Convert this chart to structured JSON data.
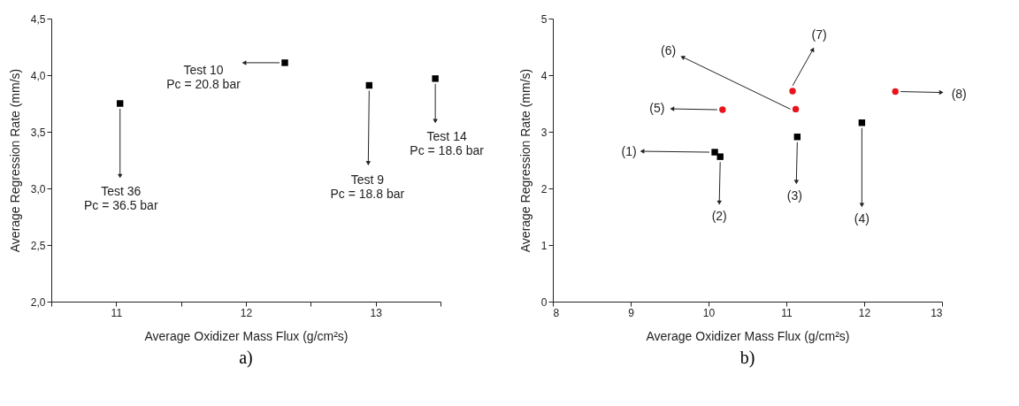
{
  "chart_data": [
    {
      "type": "scatter",
      "xlabel": "Average Oxidizer Mass Flux (g/cm²s)",
      "ylabel": "Average Regression Rate (mm/s)",
      "xlim": [
        10.5,
        13.5
      ],
      "ylim": [
        2.0,
        4.5
      ],
      "xticks": [
        {
          "value": 10.5,
          "label": null
        },
        11,
        {
          "value": 11.5,
          "label": null
        },
        12,
        {
          "value": 12.5,
          "label": null
        },
        13,
        {
          "value": 13.5,
          "label": null
        }
      ],
      "yticks": [
        {
          "value": 2.0,
          "label": "2,0"
        },
        {
          "value": 2.5,
          "label": "2,5"
        },
        {
          "value": 3.0,
          "label": "3,0"
        },
        {
          "value": 3.5,
          "label": "3,5"
        },
        {
          "value": 4.0,
          "label": "4,0"
        },
        {
          "value": 4.5,
          "label": "4,5"
        }
      ],
      "series": [
        {
          "x": [
            11.03,
            12.3,
            12.95,
            13.46
          ],
          "values": [
            3.75,
            4.11,
            3.91,
            3.97
          ],
          "color": "#000000",
          "marker": "square"
        }
      ],
      "annotations": [
        {
          "text": "Test 36\nPc = 36.5 bar",
          "x": 11.03,
          "y": 3.75
        },
        {
          "text": "Test 10\nPc = 20.8 bar",
          "x": 12.3,
          "y": 4.11
        },
        {
          "text": "Test 9\nPc = 18.8 bar",
          "x": 12.95,
          "y": 3.91
        },
        {
          "text": "Test 14\nPc = 18.6 bar",
          "x": 13.46,
          "y": 3.97
        },
        "a)"
      ],
      "grid": false
    },
    {
      "type": "scatter",
      "xlabel": "Average Oxidizer Mass Flux (g/cm²s)",
      "ylabel": "Average Regression Rate (mm/s)",
      "xlim": [
        8,
        13
      ],
      "ylim": [
        0,
        5
      ],
      "xticks": [
        8,
        9,
        10,
        11,
        12,
        13
      ],
      "yticks": [
        0,
        1,
        2,
        3,
        4,
        5
      ],
      "series": [
        {
          "x": [
            10.08,
            10.15,
            11.14,
            11.97
          ],
          "values": [
            2.64,
            2.56,
            2.91,
            3.16
          ],
          "color": "#000000",
          "marker": "square"
        },
        {
          "x": [
            10.18,
            11.12,
            11.08,
            12.4
          ],
          "values": [
            3.39,
            3.4,
            3.72,
            3.71
          ],
          "color": "#e8141c",
          "marker": "circle"
        }
      ],
      "annotations": [
        {
          "text": "(1)",
          "x": 10.08,
          "y": 2.64
        },
        {
          "text": "(2)",
          "x": 10.15,
          "y": 2.56
        },
        {
          "text": "(3)",
          "x": 11.14,
          "y": 2.91
        },
        {
          "text": "(4)",
          "x": 11.97,
          "y": 3.16
        },
        {
          "text": "(5)",
          "x": 10.18,
          "y": 3.39
        },
        {
          "text": "(6)",
          "x": 11.12,
          "y": 3.4
        },
        {
          "text": "(7)",
          "x": 11.08,
          "y": 3.72
        },
        {
          "text": "(8)",
          "x": 12.4,
          "y": 3.71
        },
        "b)"
      ],
      "grid": false
    }
  ]
}
